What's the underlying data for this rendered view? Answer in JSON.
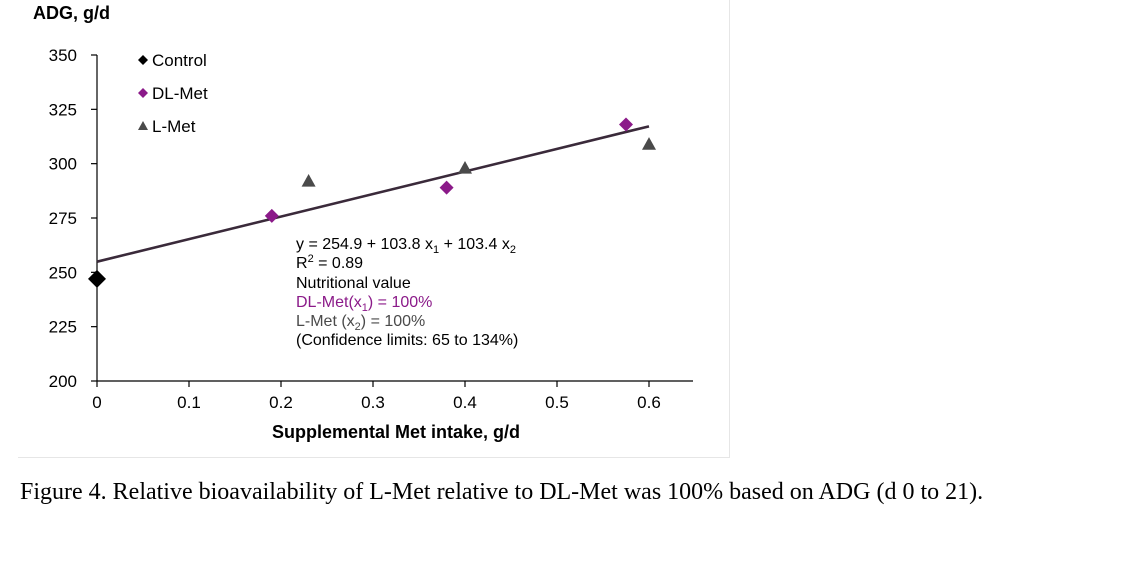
{
  "chart_data": {
    "type": "scatter",
    "ylabel": "ADG, g/d",
    "xlabel": "Supplemental Met intake, g/d",
    "xlim": [
      0,
      0.6
    ],
    "ylim": [
      200,
      350
    ],
    "x_ticks": [
      "0",
      "0.1",
      "0.2",
      "0.3",
      "0.4",
      "0.5",
      "0.6"
    ],
    "y_ticks": [
      "200",
      "225",
      "250",
      "275",
      "300",
      "325",
      "350"
    ],
    "grid": false,
    "legend_position": "top-left",
    "series": [
      {
        "name": "Control",
        "marker": "diamond",
        "color": "#000000",
        "points": [
          [
            0,
            247
          ]
        ]
      },
      {
        "name": "DL-Met",
        "marker": "diamond",
        "color": "#8b1a89",
        "points": [
          [
            0.19,
            276
          ],
          [
            0.38,
            289
          ],
          [
            0.575,
            318
          ]
        ]
      },
      {
        "name": "L-Met",
        "marker": "triangle",
        "color": "#4a4a4a",
        "points": [
          [
            0.23,
            292
          ],
          [
            0.4,
            298
          ],
          [
            0.6,
            309
          ]
        ]
      }
    ],
    "fit_line": {
      "intercept": 254.9,
      "slope": 103.8,
      "x_range": [
        0,
        0.6
      ],
      "color": "#3a2a3a"
    },
    "annotation": {
      "equation": "y = 254.9 + 103.8 x",
      "equation_mid": " + 103.4 x",
      "sub1": "1",
      "sub2": "2",
      "r2_prefix": "R",
      "r2_sup": "2",
      "r2_value": " = 0.89",
      "nutritional": "Nutritional  value",
      "dlmet_label": "DL-Met(x",
      "dlmet_sub": "1",
      "dlmet_value": ")    = 100%",
      "lmet_label": "L-Met (x",
      "lmet_sub": "2",
      "lmet_value": ")     = 100%",
      "confidence": "(Confidence limits: 65 to 134%)"
    }
  },
  "caption": "Figure 4. Relative bioavailability of L-Met relative to DL-Met was 100% based on ADG (d 0 to 21)."
}
